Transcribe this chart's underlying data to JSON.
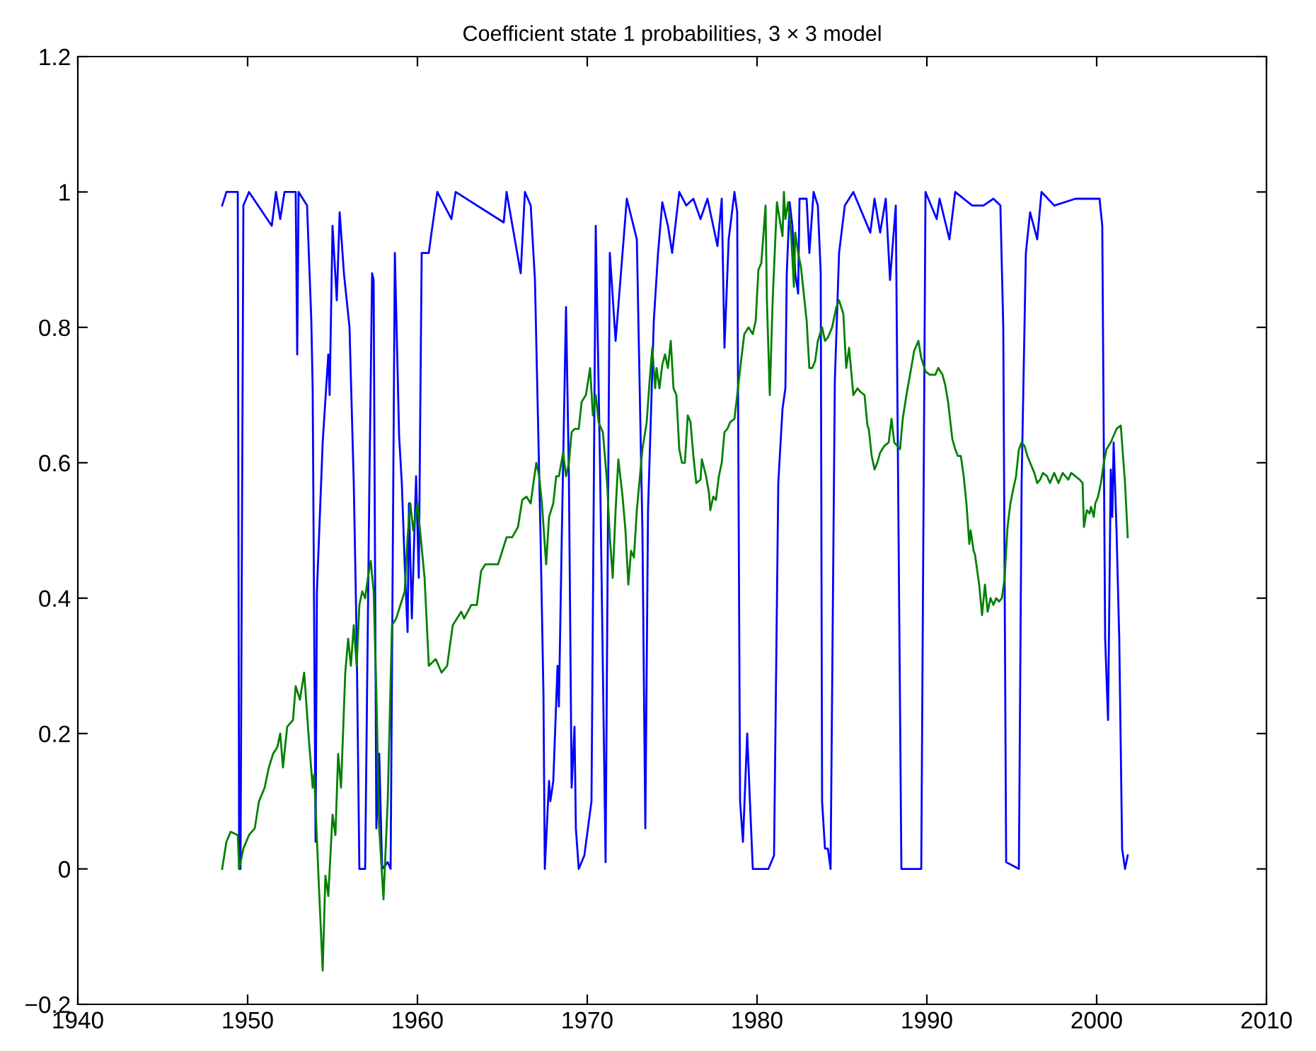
{
  "chart_data": {
    "type": "line",
    "title": "Coefficient state 1 probabilities, 3 × 3 model",
    "xlim": [
      1940,
      2010
    ],
    "xticks": [
      1940,
      1950,
      1960,
      1970,
      1980,
      1990,
      2000,
      2010
    ],
    "ylim": [
      -0.2,
      1.2
    ],
    "yticks": [
      {
        "value": -0.2,
        "label": "−0.2"
      },
      0,
      0.2,
      0.4,
      0.6,
      0.8,
      1,
      1.2
    ],
    "grid": false,
    "legend": false,
    "marker": "none",
    "line_style": "solid",
    "series": [
      {
        "color": "#0000ff",
        "x": [
          1948.5,
          1948.75,
          1949.42,
          1949.5,
          1949.58,
          1949.75,
          1950.08,
          1951.42,
          1951.67,
          1951.92,
          1952.17,
          1952.83,
          1952.92,
          1953.0,
          1953.5,
          1953.75,
          1953.83,
          1954.0,
          1954.08,
          1954.42,
          1954.75,
          1954.83,
          1955.0,
          1955.25,
          1955.42,
          1955.67,
          1956.0,
          1956.25,
          1956.42,
          1956.58,
          1956.92,
          1957.17,
          1957.33,
          1957.42,
          1957.58,
          1957.75,
          1957.92,
          1958.25,
          1958.42,
          1958.67,
          1958.92,
          1959.08,
          1959.25,
          1959.42,
          1959.5,
          1959.67,
          1959.92,
          1960.08,
          1960.25,
          1960.67,
          1960.83,
          1961.17,
          1962.0,
          1962.25,
          1965.08,
          1965.25,
          1966.08,
          1966.33,
          1966.67,
          1966.92,
          1967.25,
          1967.42,
          1967.5,
          1967.75,
          1967.83,
          1968.0,
          1968.25,
          1968.33,
          1968.5,
          1968.75,
          1968.92,
          1969.08,
          1969.25,
          1969.33,
          1969.5,
          1969.83,
          1970.25,
          1970.5,
          1970.75,
          1971.08,
          1971.33,
          1971.67,
          1972.33,
          1972.92,
          1973.25,
          1973.42,
          1973.58,
          1973.92,
          1974.17,
          1974.42,
          1974.75,
          1975.0,
          1975.42,
          1975.83,
          1976.25,
          1976.67,
          1977.08,
          1977.67,
          1977.92,
          1978.08,
          1978.33,
          1978.67,
          1978.83,
          1979.0,
          1979.17,
          1979.42,
          1979.58,
          1979.75,
          1980.67,
          1981.0,
          1981.25,
          1981.5,
          1981.67,
          1981.75,
          1981.92,
          1982.08,
          1982.25,
          1982.42,
          1982.5,
          1982.92,
          1983.08,
          1983.33,
          1983.58,
          1983.75,
          1983.83,
          1984.0,
          1984.17,
          1984.33,
          1984.58,
          1984.83,
          1985.17,
          1985.67,
          1986.67,
          1986.92,
          1987.25,
          1987.58,
          1987.83,
          1988.17,
          1988.5,
          1989.67,
          1989.92,
          1990.58,
          1990.75,
          1991.33,
          1991.67,
          1992.67,
          1993.33,
          1993.92,
          1994.33,
          1994.5,
          1994.67,
          1995.42,
          1995.58,
          1995.83,
          1996.08,
          1996.5,
          1996.75,
          1997.5,
          1998.75,
          2000.17,
          2000.33,
          2000.5,
          2000.67,
          2000.83,
          2000.92,
          2001.0,
          2001.17,
          2001.33,
          2001.5,
          2001.67,
          2001.83
        ],
        "values": [
          0.98,
          1.0,
          1.0,
          0.0,
          0.0,
          0.98,
          1.0,
          0.95,
          1.0,
          0.96,
          1.0,
          1.0,
          0.76,
          1.0,
          0.98,
          0.81,
          0.71,
          0.04,
          0.41,
          0.63,
          0.76,
          0.7,
          0.95,
          0.84,
          0.97,
          0.88,
          0.8,
          0.57,
          0.34,
          0.0,
          0.0,
          0.57,
          0.88,
          0.87,
          0.06,
          0.17,
          0.0,
          0.01,
          0.0,
          0.91,
          0.64,
          0.57,
          0.45,
          0.35,
          0.54,
          0.37,
          0.58,
          0.43,
          0.91,
          0.91,
          0.94,
          1.0,
          0.96,
          1.0,
          0.955,
          1.0,
          0.88,
          1.0,
          0.98,
          0.87,
          0.49,
          0.26,
          0.0,
          0.13,
          0.1,
          0.13,
          0.3,
          0.24,
          0.49,
          0.83,
          0.58,
          0.12,
          0.21,
          0.06,
          0.0,
          0.02,
          0.1,
          0.95,
          0.6,
          0.01,
          0.91,
          0.78,
          0.99,
          0.93,
          0.5,
          0.06,
          0.53,
          0.81,
          0.91,
          0.985,
          0.95,
          0.91,
          1.0,
          0.98,
          0.99,
          0.96,
          0.99,
          0.92,
          0.99,
          0.77,
          0.93,
          1.0,
          0.97,
          0.1,
          0.04,
          0.2,
          0.1,
          0.0,
          0.0,
          0.02,
          0.57,
          0.68,
          0.71,
          0.88,
          0.985,
          0.95,
          0.88,
          0.85,
          0.99,
          0.99,
          0.91,
          1.0,
          0.98,
          0.88,
          0.1,
          0.03,
          0.03,
          0.0,
          0.72,
          0.91,
          0.98,
          1.0,
          0.94,
          0.99,
          0.94,
          0.99,
          0.87,
          0.98,
          0.0,
          0.0,
          1.0,
          0.96,
          0.99,
          0.93,
          1.0,
          0.98,
          0.98,
          0.99,
          0.98,
          0.8,
          0.01,
          0.0,
          0.57,
          0.91,
          0.97,
          0.93,
          1.0,
          0.98,
          0.99,
          0.99,
          0.95,
          0.34,
          0.22,
          0.59,
          0.52,
          0.63,
          0.5,
          0.34,
          0.03,
          0.0,
          0.02
        ]
      },
      {
        "color": "#008000",
        "x": [
          1948.5,
          1948.75,
          1949.0,
          1949.42,
          1949.5,
          1949.75,
          1950.08,
          1950.42,
          1950.67,
          1951.0,
          1951.25,
          1951.5,
          1951.75,
          1951.92,
          1952.08,
          1952.33,
          1952.67,
          1952.83,
          1953.08,
          1953.33,
          1953.58,
          1953.83,
          1953.92,
          1954.17,
          1954.42,
          1954.58,
          1954.75,
          1955.0,
          1955.17,
          1955.33,
          1955.5,
          1955.75,
          1955.92,
          1956.08,
          1956.25,
          1956.42,
          1956.58,
          1956.75,
          1956.92,
          1957.08,
          1957.25,
          1957.42,
          1957.58,
          1957.75,
          1958.0,
          1958.25,
          1958.5,
          1958.75,
          1959.0,
          1959.25,
          1959.42,
          1959.58,
          1959.75,
          1960.0,
          1960.42,
          1960.67,
          1961.08,
          1961.42,
          1961.75,
          1962.08,
          1962.58,
          1962.75,
          1963.17,
          1963.5,
          1963.75,
          1964.0,
          1964.42,
          1964.75,
          1965.0,
          1965.25,
          1965.58,
          1965.92,
          1966.17,
          1966.42,
          1966.67,
          1966.83,
          1967.0,
          1967.17,
          1967.33,
          1967.58,
          1967.75,
          1968.0,
          1968.17,
          1968.33,
          1968.58,
          1968.75,
          1968.92,
          1969.08,
          1969.25,
          1969.5,
          1969.67,
          1969.92,
          1970.17,
          1970.33,
          1970.5,
          1970.67,
          1970.92,
          1971.17,
          1971.33,
          1971.5,
          1971.67,
          1971.83,
          1972.08,
          1972.25,
          1972.42,
          1972.58,
          1972.75,
          1972.92,
          1973.25,
          1973.5,
          1973.67,
          1973.83,
          1974.0,
          1974.08,
          1974.25,
          1974.42,
          1974.58,
          1974.75,
          1974.92,
          1975.08,
          1975.25,
          1975.42,
          1975.58,
          1975.75,
          1975.92,
          1976.08,
          1976.25,
          1976.42,
          1976.67,
          1976.75,
          1977.0,
          1977.17,
          1977.25,
          1977.42,
          1977.58,
          1977.75,
          1977.92,
          1978.08,
          1978.25,
          1978.42,
          1978.67,
          1978.83,
          1979.08,
          1979.25,
          1979.5,
          1979.75,
          1979.92,
          1980.08,
          1980.25,
          1980.5,
          1980.58,
          1980.75,
          1980.92,
          1981.17,
          1981.33,
          1981.5,
          1981.58,
          1981.67,
          1981.83,
          1982.0,
          1982.17,
          1982.25,
          1982.42,
          1982.58,
          1982.75,
          1982.92,
          1983.08,
          1983.25,
          1983.42,
          1983.58,
          1983.83,
          1984.0,
          1984.17,
          1984.42,
          1984.67,
          1984.83,
          1985.08,
          1985.25,
          1985.42,
          1985.67,
          1985.92,
          1986.08,
          1986.33,
          1986.5,
          1986.58,
          1986.75,
          1986.92,
          1987.08,
          1987.25,
          1987.5,
          1987.75,
          1987.92,
          1988.08,
          1988.25,
          1988.42,
          1988.58,
          1988.83,
          1989.08,
          1989.25,
          1989.5,
          1989.67,
          1989.92,
          1990.17,
          1990.5,
          1990.67,
          1990.92,
          1991.08,
          1991.25,
          1991.5,
          1991.67,
          1991.83,
          1992.0,
          1992.17,
          1992.33,
          1992.5,
          1992.58,
          1992.75,
          1992.83,
          1993.08,
          1993.25,
          1993.42,
          1993.58,
          1993.75,
          1993.92,
          1994.08,
          1994.25,
          1994.42,
          1994.58,
          1994.75,
          1994.92,
          1995.08,
          1995.25,
          1995.42,
          1995.58,
          1995.75,
          1995.92,
          1996.08,
          1996.33,
          1996.5,
          1996.67,
          1996.83,
          1997.08,
          1997.25,
          1997.5,
          1997.75,
          1998.0,
          1998.33,
          1998.5,
          1998.75,
          1999.0,
          1999.17,
          1999.25,
          1999.42,
          1999.58,
          1999.67,
          1999.83,
          1999.92,
          2000.08,
          2000.25,
          2000.42,
          2000.58,
          2000.83,
          2001.0,
          2001.17,
          2001.42,
          2001.67,
          2001.83
        ],
        "values": [
          0.0,
          0.04,
          0.055,
          0.05,
          0.0,
          0.03,
          0.05,
          0.06,
          0.1,
          0.12,
          0.15,
          0.17,
          0.18,
          0.2,
          0.15,
          0.21,
          0.22,
          0.27,
          0.25,
          0.29,
          0.2,
          0.12,
          0.14,
          -0.01,
          -0.15,
          -0.01,
          -0.04,
          0.08,
          0.05,
          0.17,
          0.12,
          0.29,
          0.34,
          0.3,
          0.36,
          0.3,
          0.39,
          0.41,
          0.4,
          0.43,
          0.455,
          0.41,
          0.26,
          0.06,
          -0.045,
          0.1,
          0.36,
          0.37,
          0.39,
          0.41,
          0.49,
          0.54,
          0.5,
          0.54,
          0.43,
          0.3,
          0.31,
          0.29,
          0.3,
          0.36,
          0.38,
          0.37,
          0.39,
          0.39,
          0.44,
          0.45,
          0.45,
          0.45,
          0.47,
          0.49,
          0.49,
          0.505,
          0.545,
          0.55,
          0.54,
          0.57,
          0.6,
          0.58,
          0.54,
          0.45,
          0.52,
          0.54,
          0.58,
          0.58,
          0.615,
          0.58,
          0.6,
          0.645,
          0.65,
          0.65,
          0.69,
          0.7,
          0.74,
          0.67,
          0.7,
          0.66,
          0.645,
          0.57,
          0.49,
          0.43,
          0.53,
          0.605,
          0.55,
          0.5,
          0.42,
          0.47,
          0.46,
          0.53,
          0.62,
          0.66,
          0.72,
          0.77,
          0.71,
          0.74,
          0.71,
          0.745,
          0.76,
          0.74,
          0.78,
          0.71,
          0.7,
          0.62,
          0.6,
          0.6,
          0.67,
          0.66,
          0.61,
          0.57,
          0.575,
          0.605,
          0.58,
          0.555,
          0.53,
          0.55,
          0.545,
          0.58,
          0.6,
          0.645,
          0.65,
          0.66,
          0.665,
          0.7,
          0.755,
          0.79,
          0.8,
          0.79,
          0.81,
          0.885,
          0.895,
          0.98,
          0.84,
          0.7,
          0.84,
          0.985,
          0.96,
          0.935,
          1.0,
          0.96,
          0.985,
          0.94,
          0.86,
          0.94,
          0.91,
          0.89,
          0.85,
          0.81,
          0.74,
          0.74,
          0.75,
          0.78,
          0.8,
          0.78,
          0.785,
          0.8,
          0.83,
          0.84,
          0.82,
          0.74,
          0.77,
          0.7,
          0.71,
          0.705,
          0.7,
          0.655,
          0.65,
          0.61,
          0.59,
          0.6,
          0.615,
          0.625,
          0.63,
          0.665,
          0.63,
          0.625,
          0.62,
          0.665,
          0.705,
          0.74,
          0.765,
          0.78,
          0.755,
          0.735,
          0.73,
          0.73,
          0.74,
          0.73,
          0.715,
          0.69,
          0.635,
          0.62,
          0.61,
          0.61,
          0.58,
          0.54,
          0.48,
          0.5,
          0.47,
          0.465,
          0.42,
          0.375,
          0.42,
          0.38,
          0.4,
          0.39,
          0.4,
          0.395,
          0.4,
          0.43,
          0.505,
          0.54,
          0.56,
          0.58,
          0.62,
          0.63,
          0.625,
          0.61,
          0.6,
          0.585,
          0.57,
          0.575,
          0.585,
          0.58,
          0.57,
          0.585,
          0.57,
          0.585,
          0.575,
          0.585,
          0.58,
          0.575,
          0.57,
          0.505,
          0.53,
          0.525,
          0.535,
          0.52,
          0.54,
          0.55,
          0.57,
          0.6,
          0.62,
          0.63,
          0.64,
          0.65,
          0.655,
          0.57,
          0.49
        ]
      }
    ]
  }
}
